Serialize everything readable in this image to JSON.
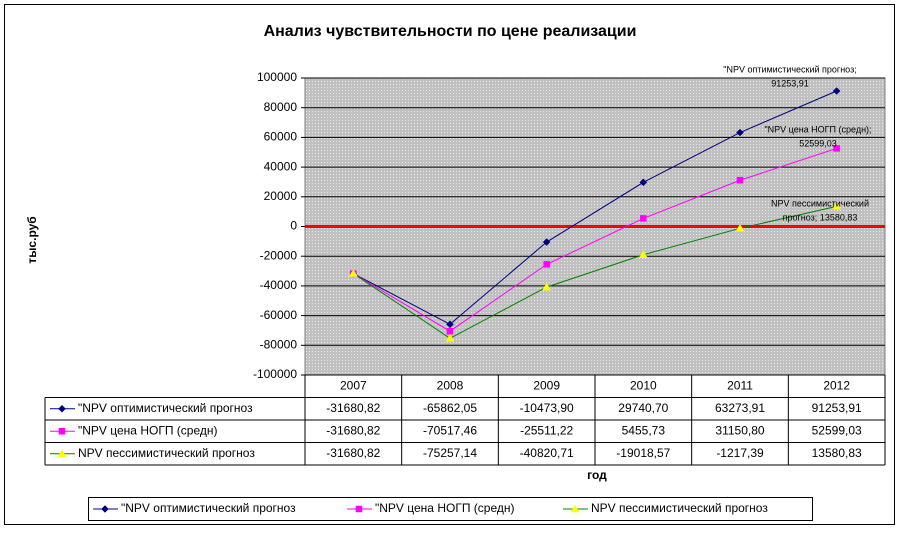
{
  "chart_data": {
    "type": "line",
    "title": "Анализ чувствительности по цене реализации",
    "ylabel": "тыс.руб",
    "xlabel": "год",
    "categories": [
      "2007",
      "2008",
      "2009",
      "2010",
      "2011",
      "2012"
    ],
    "ylim": [
      -100000,
      100000
    ],
    "yticks": [
      -100000,
      -80000,
      -60000,
      -40000,
      -20000,
      0,
      20000,
      40000,
      60000,
      80000,
      100000
    ],
    "grid": true,
    "zero_line_color": "#ff0000",
    "plot_background": "#c0c0c0",
    "legend": "bottom",
    "series": [
      {
        "name": "\"NPV оптимистический прогноз",
        "color": "#000080",
        "marker": "diamond",
        "marker_color": "#000080",
        "values": [
          -31680.82,
          -65862.05,
          -10473.9,
          29740.7,
          63273.91,
          91253.91
        ],
        "value_labels": [
          "-31680,82",
          "-65862,05",
          "-10473,90",
          "29740,70",
          "63273,91",
          "91253,91"
        ],
        "end_label": [
          "\"NPV оптимистический прогноз;",
          "91253,91"
        ]
      },
      {
        "name": "\"NPV цена НОГП (средн)",
        "color": "#ff00ff",
        "marker": "square",
        "marker_color": "#ff00ff",
        "values": [
          -31680.82,
          -70517.46,
          -25511.22,
          5455.73,
          31150.8,
          52599.03
        ],
        "value_labels": [
          "-31680,82",
          "-70517,46",
          "-25511,22",
          "5455,73",
          "31150,80",
          "52599,03"
        ],
        "end_label": [
          "\"NPV цена НОГП (средн);",
          "52599,03"
        ]
      },
      {
        "name": "NPV пессимистический прогноз",
        "color": "#008000",
        "marker": "triangle",
        "marker_color": "#ffff00",
        "values": [
          -31680.82,
          -75257.14,
          -40820.71,
          -19018.57,
          -1217.39,
          13580.83
        ],
        "value_labels": [
          "-31680,82",
          "-75257,14",
          "-40820,71",
          "-19018,57",
          "-1217,39",
          "13580,83"
        ],
        "end_label": [
          "NPV пессимистический",
          "прогноз; 13580,83"
        ]
      }
    ]
  }
}
